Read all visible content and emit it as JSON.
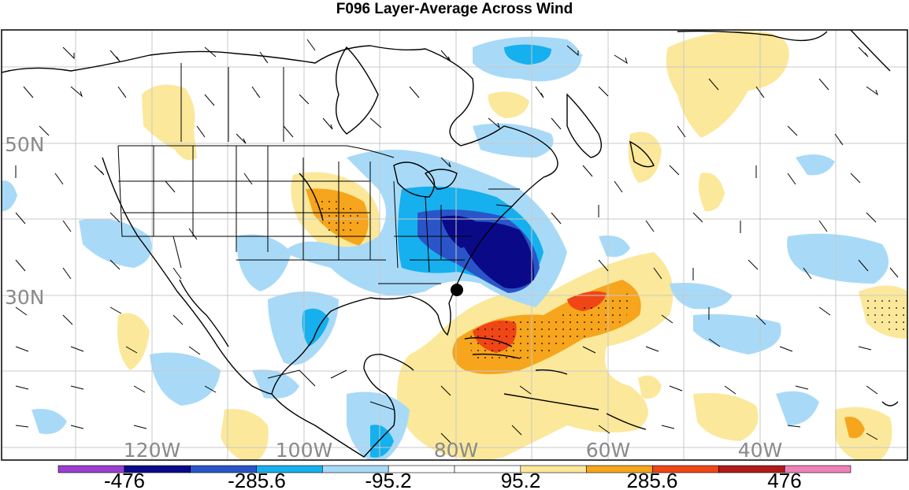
{
  "title": "F096 Layer-Average Across Wind",
  "lat_labels": [
    "50N",
    "30N"
  ],
  "lon_labels": [
    "120W",
    "100W",
    "80W",
    "60W",
    "40W"
  ],
  "colorbar": {
    "tick_labels": [
      "-476",
      "-285.6",
      "-95.2",
      "95.2",
      "285.6",
      "476"
    ],
    "colors": [
      "#9a3fd0",
      "#0a0a88",
      "#2a55c8",
      "#16b0ee",
      "#a8daf8",
      "#ffffff",
      "#ffffff",
      "#fbe89a",
      "#f6a51c",
      "#f04616",
      "#b01a1a",
      "#f080b8"
    ]
  },
  "legend_colors": {
    "strong_negative": "#0a0a88",
    "negative": "#2a55c8",
    "moderate_negative": "#16b0ee",
    "weak_negative": "#a8daf8",
    "weak_positive": "#fbe89a",
    "moderate_positive": "#f6a51c",
    "positive": "#f04616"
  },
  "map_features": [
    "storm-center-marker",
    "wind-barbs",
    "coastlines",
    "state-borders",
    "lat-lon-grid"
  ]
}
